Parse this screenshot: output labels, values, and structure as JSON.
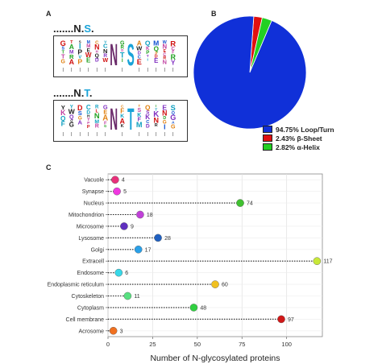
{
  "panels": {
    "a": "A",
    "b": "B",
    "c": "C"
  },
  "motifs": [
    {
      "prefix": ".......",
      "n": "N",
      "sep": ".",
      "x": "S",
      "suffix": ".",
      "x_color": "#1aa3d8",
      "center_letters": [
        "N",
        "S"
      ]
    },
    {
      "prefix": ".......",
      "n": "N",
      "sep": ".",
      "x": "T",
      "suffix": ".",
      "x_color": "#1aa3d8",
      "center_letters": [
        "N",
        "T"
      ]
    }
  ],
  "pie": {
    "slices": [
      {
        "label": "94.75%  Loop/Turn",
        "value": 94.75,
        "color": "#1030d8"
      },
      {
        "label": "2.43%  β-Sheet",
        "value": 2.43,
        "color": "#e01010"
      },
      {
        "label": "2.82%  α-Helix",
        "value": 2.82,
        "color": "#22d022"
      }
    ]
  },
  "chart_data": {
    "type": "scatter",
    "style": "lollipop",
    "xlabel": "Number of N-glycosylated proteins",
    "xlim": [
      0,
      120
    ],
    "xticks": [
      0,
      25,
      50,
      75,
      100
    ],
    "grid": true,
    "categories": [
      "Vacuole",
      "Synapse",
      "Nucleus",
      "Mitochondrion",
      "Microsome",
      "Lysosome",
      "Golgi",
      "Extracell",
      "Endosome",
      "Endoplasmic reticulum",
      "Cytoskeleton",
      "Cytoplasm",
      "Cell membrane",
      "Acrosome"
    ],
    "values": [
      4,
      5,
      74,
      18,
      9,
      28,
      17,
      117,
      6,
      60,
      11,
      48,
      97,
      3
    ],
    "colors": [
      "#e8307a",
      "#f038e0",
      "#40c030",
      "#c040d8",
      "#6030c0",
      "#2060c0",
      "#2aa0e8",
      "#c8e838",
      "#38d8e8",
      "#f0c020",
      "#58e080",
      "#30d040",
      "#d01818",
      "#f07020"
    ]
  }
}
